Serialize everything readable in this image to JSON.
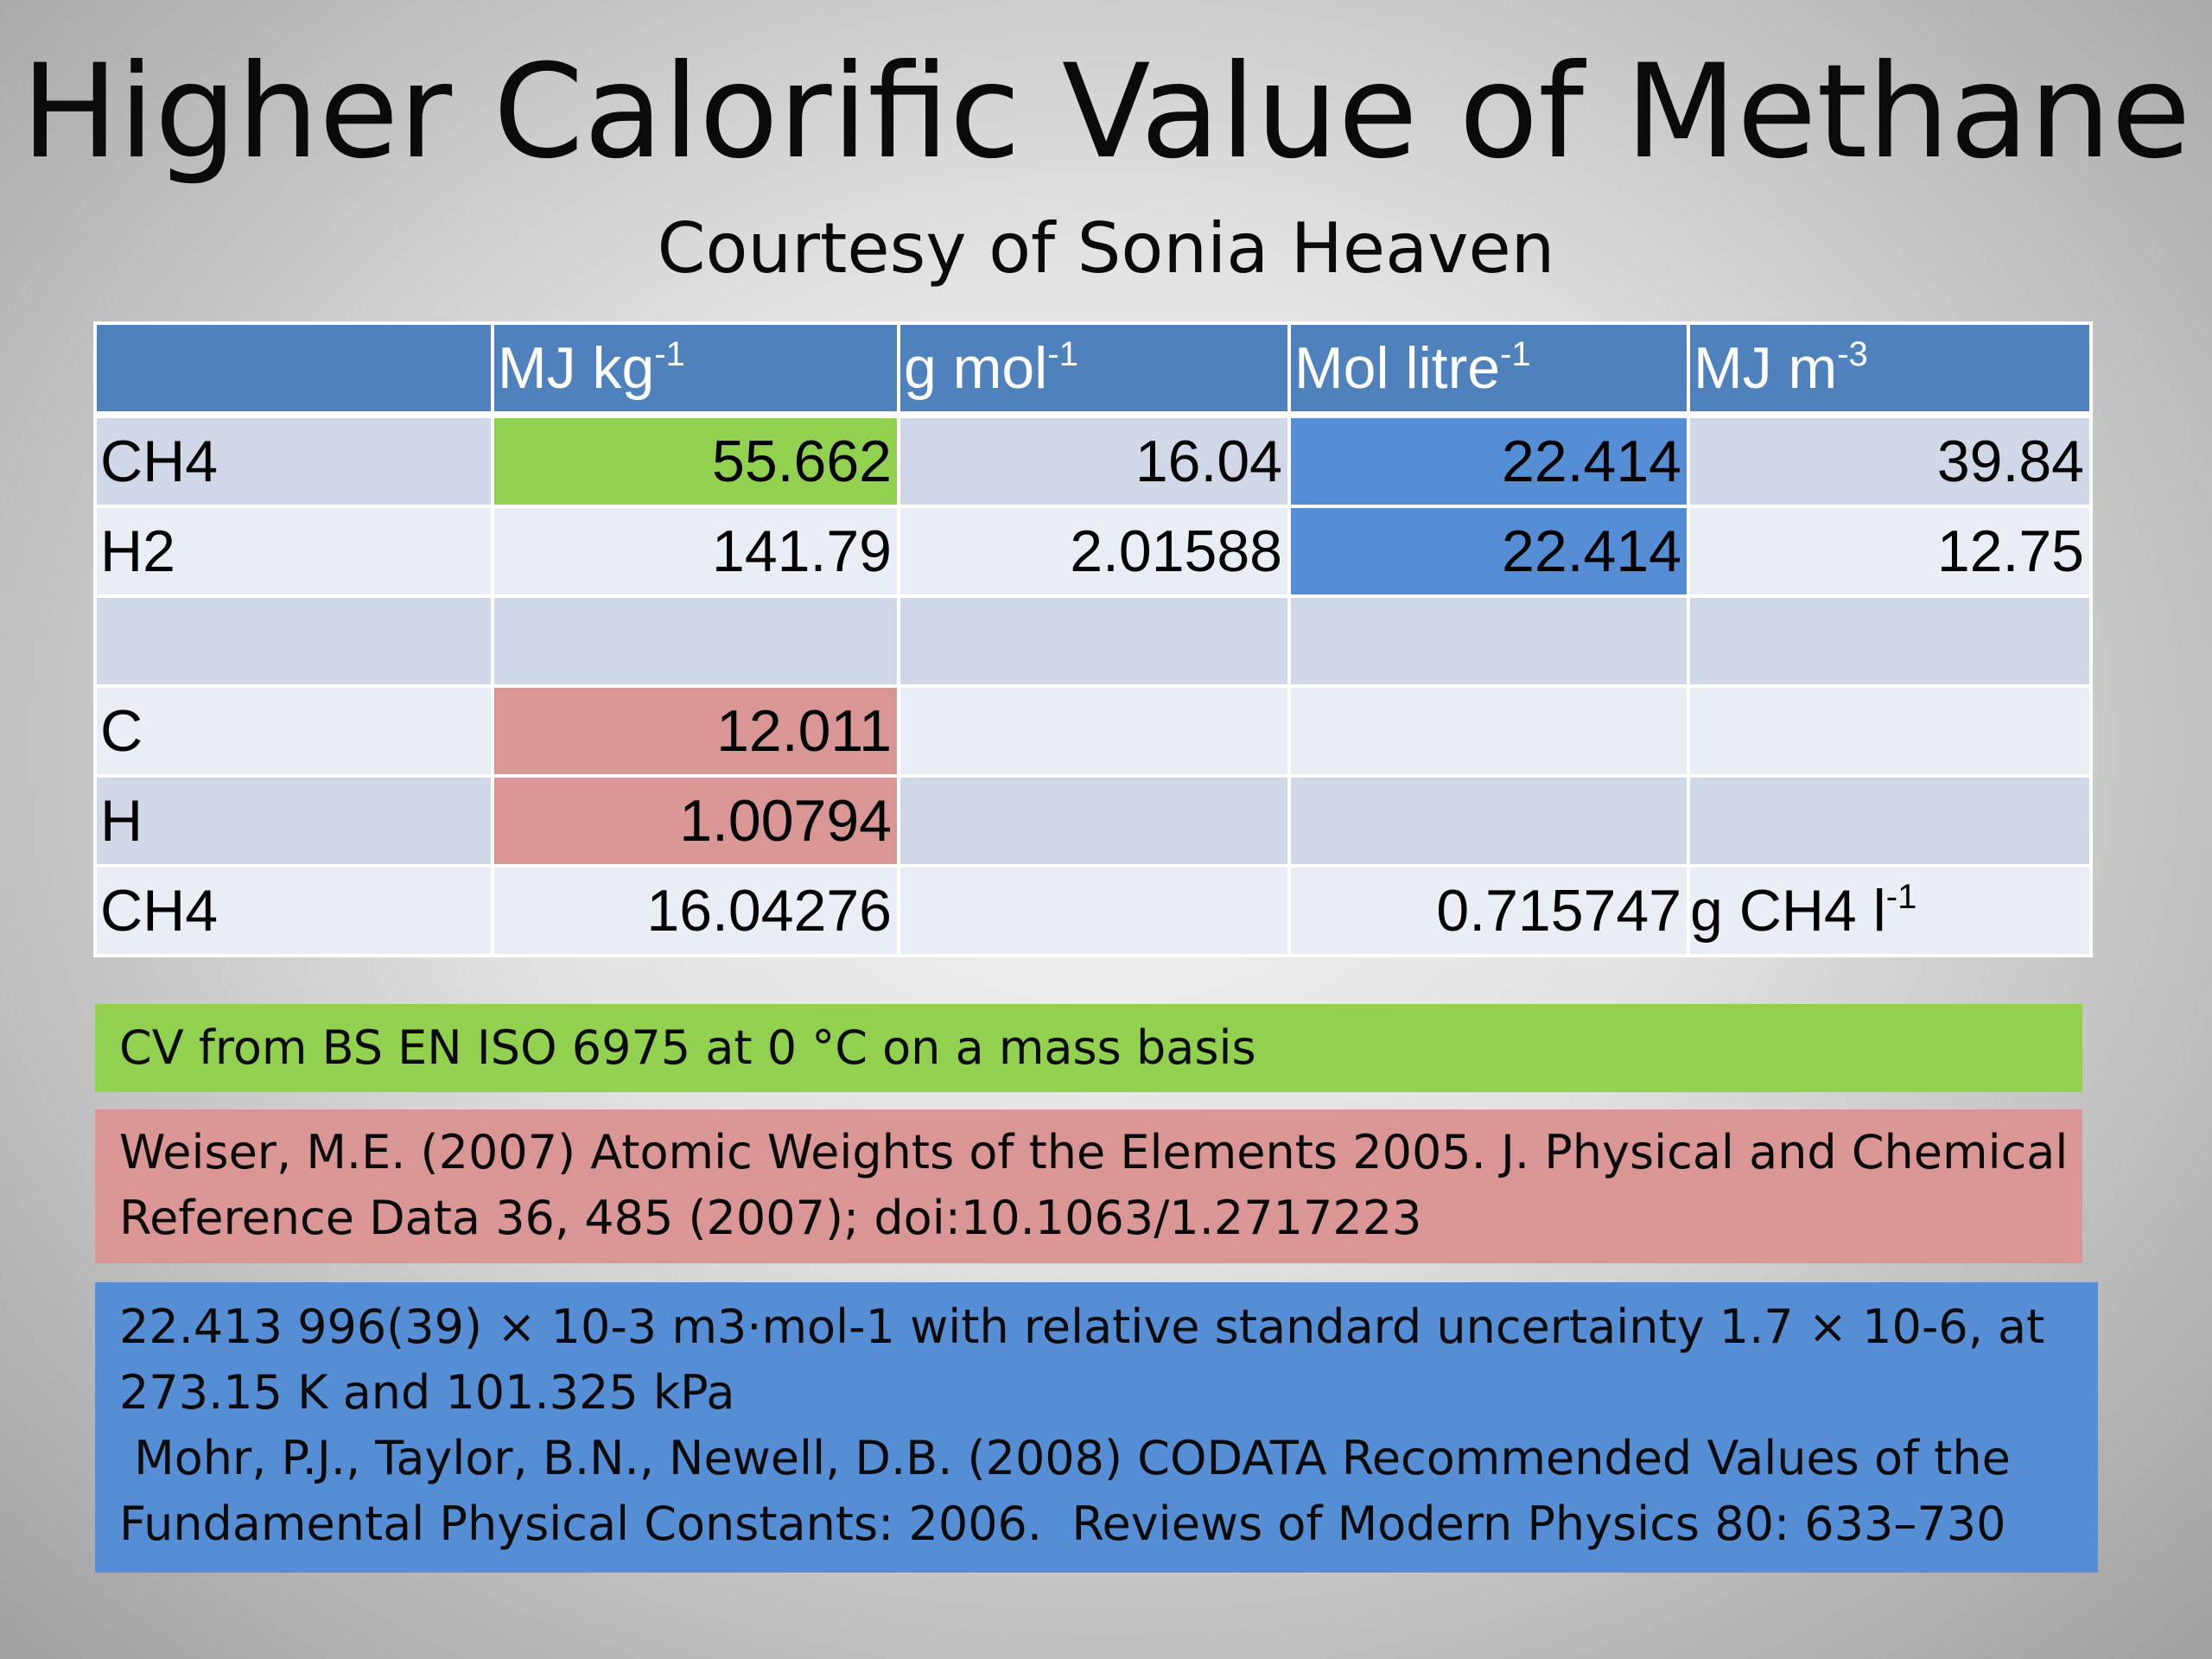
{
  "slide": {
    "title": "Higher Calorific Value of Methane",
    "subtitle": "Courtesy of Sonia Heaven"
  },
  "table": {
    "headers": [
      {
        "base": "",
        "sup": ""
      },
      {
        "base": "MJ kg",
        "sup": "-1"
      },
      {
        "base": "g mol",
        "sup": "-1"
      },
      {
        "base": "Mol litre",
        "sup": "-1"
      },
      {
        "base": "MJ m",
        "sup": "-3"
      }
    ],
    "rows": [
      [
        "CH4",
        "55.662",
        "16.04",
        "22.414",
        "39.84"
      ],
      [
        "H2",
        "141.79",
        "2.01588",
        "22.414",
        "12.75"
      ],
      [
        "",
        "",
        "",
        "",
        ""
      ],
      [
        "C",
        "12.011",
        "",
        "",
        ""
      ],
      [
        "H",
        "1.00794",
        "",
        "",
        ""
      ],
      [
        "CH4",
        "16.04276",
        "",
        "0.715747",
        ""
      ]
    ],
    "ch4_density_unit": {
      "base": "g CH4 l",
      "sup": "-1"
    }
  },
  "notes": {
    "green": "CV from BS EN ISO 6975 at 0 °C on a mass basis",
    "red": [
      "Weiser, M.E. (2007) Atomic Weights of the Elements 2005. J. Physical and Chemical",
      "Reference Data 36, 485 (2007); doi:10.1063/1.2717223"
    ],
    "blue": [
      "22.413 996(39) × 10-3 m3·mol-1 with relative standard uncertainty 1.7 × 10-6, at",
      "273.15 K and 101.325 kPa",
      " Mohr, P.J., Taylor, B.N., Newell, D.B. (2008) CODATA Recommended Values of the",
      "Fundamental Physical Constants: 2006.  Reviews of Modern Physics 80: 633–730"
    ]
  },
  "colors": {
    "header_blue": "#4f81bd",
    "highlight_green": "#92d050",
    "highlight_blue": "#558ed5",
    "highlight_red": "#d99694",
    "row_dark": "#d0d8e8",
    "row_light": "#e9edf4"
  }
}
